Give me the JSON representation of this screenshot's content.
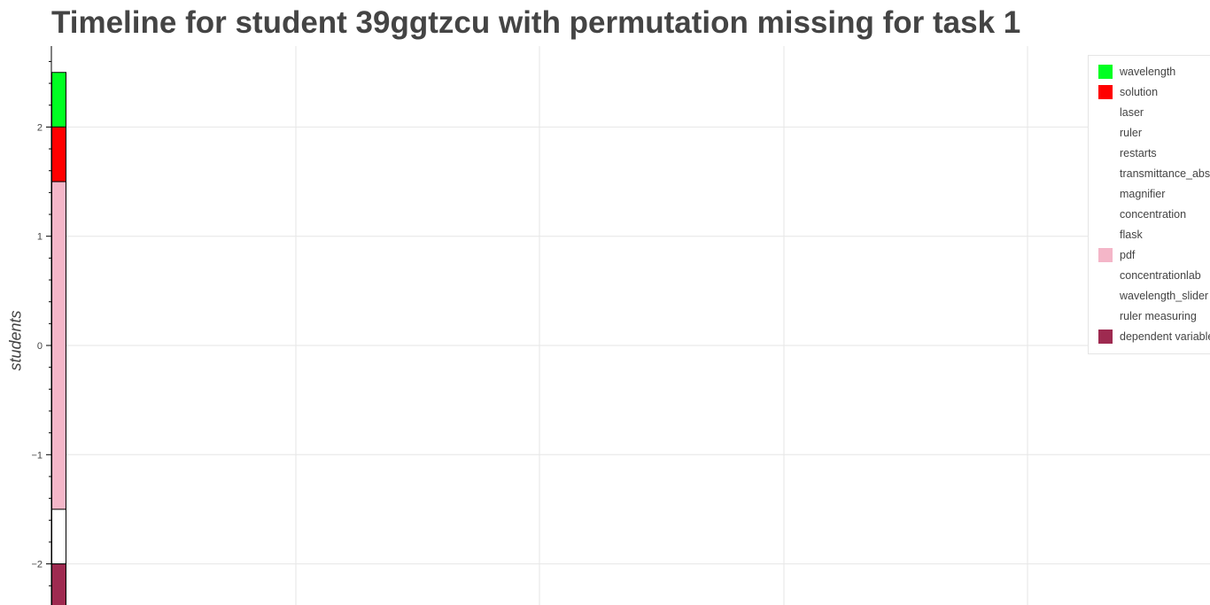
{
  "chart_data": {
    "type": "bar",
    "title": "Timeline for student 39ggtzcu with permutation missing for task 1",
    "ylabel": "students",
    "xlabel": "",
    "ylim": [
      -2.4,
      2.75
    ],
    "yticks": [
      2,
      1,
      0,
      -1,
      -2
    ],
    "ytick_labels": [
      "2",
      "1",
      "0",
      "−1",
      "−2"
    ],
    "grid": true,
    "legend_position": "top-right",
    "segments": [
      {
        "category": "wavelength",
        "y0": 2.0,
        "y1": 2.5
      },
      {
        "category": "solution",
        "y0": 1.5,
        "y1": 2.0
      },
      {
        "category": "pdf",
        "y0": -1.5,
        "y1": 1.5
      },
      {
        "category": "",
        "y0": -2.0,
        "y1": -1.5
      },
      {
        "category": "dependent variable",
        "y0": -2.4,
        "y1": -2.0
      }
    ],
    "legend": [
      {
        "label": "wavelength",
        "color": "#00ff22"
      },
      {
        "label": "solution",
        "color": "#ff0000"
      },
      {
        "label": "laser",
        "color": "#ffffff"
      },
      {
        "label": "ruler",
        "color": "#ffffff"
      },
      {
        "label": "restarts",
        "color": "#ffffff"
      },
      {
        "label": "transmittance_abs",
        "color": "#ffffff"
      },
      {
        "label": "magnifier",
        "color": "#ffffff"
      },
      {
        "label": "concentration",
        "color": "#ffffff"
      },
      {
        "label": "flask",
        "color": "#ffffff"
      },
      {
        "label": "pdf",
        "color": "#f4b6c8"
      },
      {
        "label": "concentrationlab",
        "color": "#ffffff"
      },
      {
        "label": "wavelength_slider",
        "color": "#ffffff"
      },
      {
        "label": "ruler measuring",
        "color": "#ffffff"
      },
      {
        "label": "dependent variable",
        "color": "#9e2a50"
      }
    ]
  }
}
